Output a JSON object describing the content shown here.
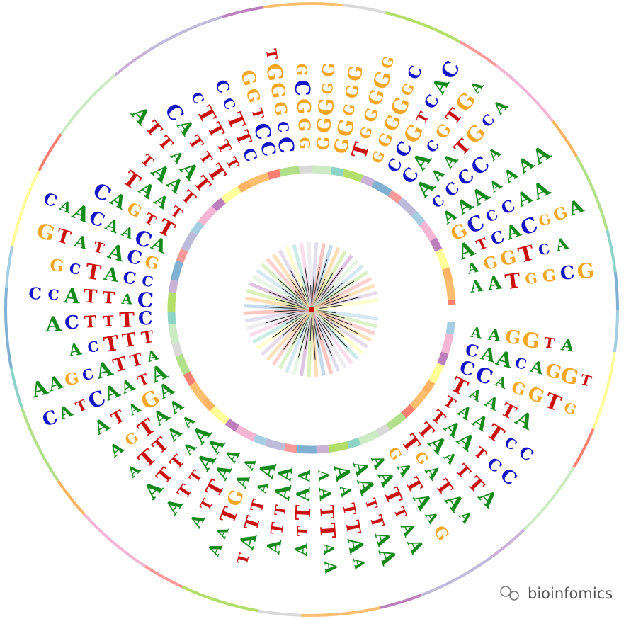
{
  "motifs": [
    [
      "A",
      "A",
      "G",
      "G",
      "T",
      "A"
    ],
    [
      "C",
      "A",
      "A",
      "C",
      "A",
      "G",
      "G",
      "T"
    ],
    [
      "C",
      "C",
      "A",
      "G",
      "G",
      "T",
      "G"
    ],
    [
      "T",
      "A",
      "A",
      "T",
      "A"
    ],
    [
      "T",
      "A",
      "A",
      "T",
      "C",
      "C"
    ],
    [
      "T",
      "A",
      "A",
      "T",
      "C",
      "C"
    ],
    [
      "T",
      "A",
      "A",
      "T",
      "T",
      "A"
    ],
    [
      "T",
      "G",
      "A",
      "T",
      "A",
      "A"
    ],
    [
      "G",
      "A",
      "T",
      "A",
      "A",
      "G"
    ],
    [
      "A",
      "A",
      "T",
      "T",
      "A",
      "A"
    ],
    [
      "A",
      "A",
      "T",
      "T",
      "A",
      "A"
    ],
    [
      "A",
      "A",
      "T",
      "T",
      "A",
      "A"
    ],
    [
      "A",
      "A",
      "T",
      "T",
      "A",
      "A"
    ],
    [
      "A",
      "A",
      "T",
      "T",
      "A"
    ],
    [
      "A",
      "A",
      "T",
      "T",
      "A"
    ],
    [
      "A",
      "A",
      "T",
      "T",
      "A",
      "T"
    ],
    [
      "A",
      "A",
      "G",
      "T",
      "A",
      "A"
    ],
    [
      "A",
      "A",
      "T",
      "T",
      "A"
    ],
    [
      "A",
      "A",
      "T",
      "T",
      "A"
    ],
    [
      "A",
      "A",
      "T",
      "T",
      "A"
    ],
    [
      "A",
      "A",
      "T",
      "T",
      "A"
    ],
    [
      "A",
      "A",
      "T",
      "G",
      "A"
    ],
    [
      "A",
      "G",
      "A",
      "T",
      "A"
    ],
    [
      "A",
      "T",
      "A",
      "A",
      "C",
      "T",
      "A",
      "C"
    ],
    [
      "A",
      "T",
      "T",
      "A",
      "C",
      "G",
      "A",
      "A"
    ],
    [
      "T",
      "T",
      "T",
      "C",
      "A"
    ],
    [
      "C",
      "T",
      "T",
      "T",
      "C",
      "A"
    ],
    [
      "C",
      "A",
      "T",
      "T",
      "A",
      "C",
      "C"
    ],
    [
      "C",
      "C",
      "A",
      "T",
      "C",
      "G"
    ],
    [
      "G",
      "C",
      "A",
      "T",
      "A",
      "T",
      "G"
    ],
    [
      "A",
      "C",
      "A",
      "A",
      "C",
      "A",
      "A",
      "C"
    ],
    [
      "T",
      "T",
      "G",
      "A",
      "C"
    ],
    [
      "T",
      "A",
      "A",
      "T"
    ],
    [
      "T",
      "A",
      "A",
      "T"
    ],
    [
      "T",
      "A",
      "A",
      "T",
      "T",
      "A"
    ],
    [
      "T",
      "T",
      "T",
      "A",
      "C"
    ],
    [
      "T",
      "T",
      "T",
      "T",
      "C"
    ],
    [
      "C",
      "T",
      "T",
      "C",
      "C"
    ],
    [
      "C",
      "C",
      "T",
      "G",
      "G"
    ],
    [
      "C",
      "C",
      "G",
      "G",
      "G",
      "T"
    ],
    [
      "G",
      "G",
      "G",
      "C",
      "G"
    ],
    [
      "G",
      "G",
      "G",
      "G",
      "G"
    ],
    [
      "G",
      "G",
      "G",
      "G",
      "G"
    ],
    [
      "T",
      "G",
      "G",
      "G",
      "G",
      "G"
    ],
    [
      "G",
      "G",
      "G",
      "G",
      "G",
      "C"
    ],
    [
      "C",
      "C",
      "G",
      "T",
      "C",
      "A",
      "C"
    ],
    [
      "C",
      "A",
      "C",
      "G",
      "T",
      "G",
      "A"
    ],
    [
      "A",
      "A",
      "A",
      "T",
      "G",
      "C",
      "A"
    ],
    [
      "C",
      "C",
      "C",
      "C",
      "A"
    ],
    [
      "A",
      "A",
      "A",
      "A",
      "A",
      "A",
      "A"
    ],
    [
      "G",
      "C",
      "C",
      "C",
      "A",
      "A"
    ],
    [
      "A",
      "T",
      "C",
      "A",
      "C",
      "G",
      "G",
      "A"
    ],
    [
      "A",
      "G",
      "G",
      "T",
      "C",
      "A"
    ],
    [
      "A",
      "A",
      "T",
      "G",
      "G",
      "C",
      "G"
    ]
  ],
  "watermark": "bioinfomics"
}
